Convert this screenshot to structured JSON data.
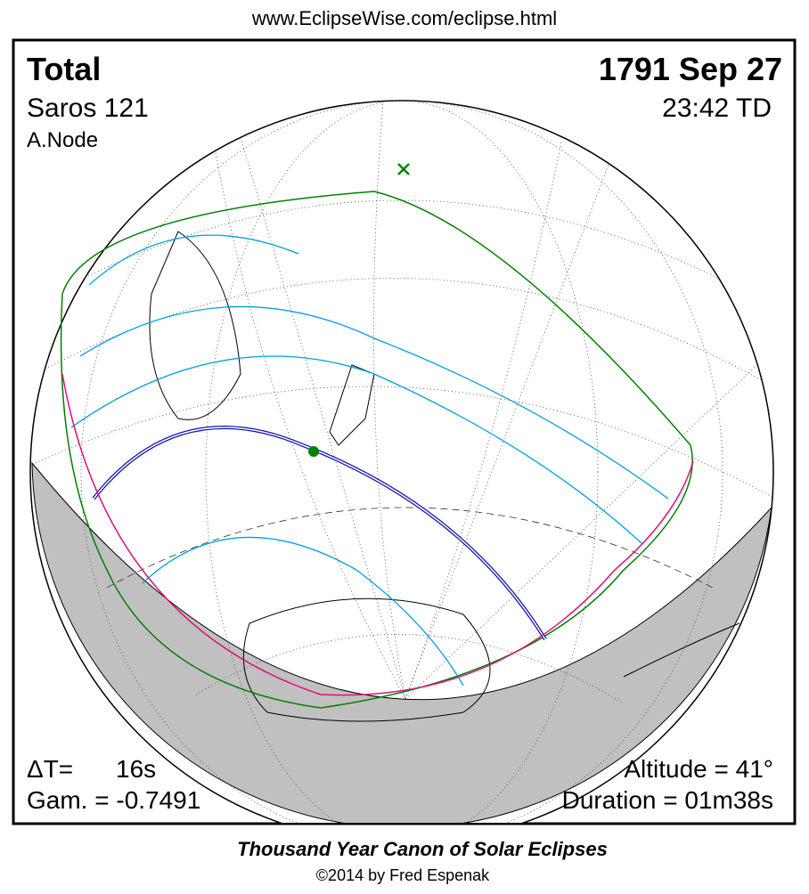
{
  "header": {
    "url": "www.EclipseWise.com/eclipse.html"
  },
  "panel": {
    "eclipse_type": "Total",
    "date": "1791 Sep 27",
    "saros": "Saros 121",
    "time": "23:42 TD",
    "node": "A.Node",
    "delta_t_label": "ΔT=",
    "delta_t_value": "16s",
    "gamma": "Gam. = -0.7491",
    "altitude": "Altitude = 41°",
    "duration": "Duration = 01m38s"
  },
  "footer": {
    "title": "Thousand Year Canon of Solar Eclipses",
    "copyright": "©2014 by Fred Espenak"
  }
}
